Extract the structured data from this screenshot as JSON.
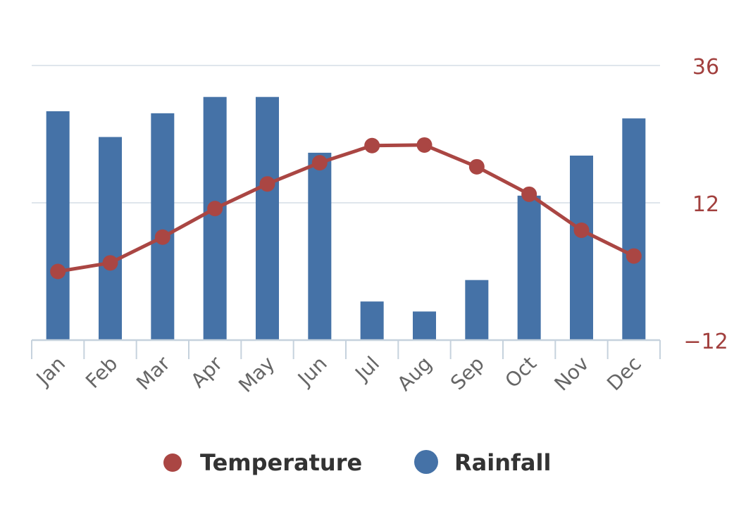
{
  "chart_data": {
    "type": "bar+line",
    "title": "",
    "categories": [
      "Jan",
      "Feb",
      "Mar",
      "Apr",
      "May",
      "Jun",
      "Jul",
      "Aug",
      "Sep",
      "Oct",
      "Nov",
      "Dec"
    ],
    "series": [
      {
        "name": "Rainfall",
        "type": "bar",
        "color": "#4572a7",
        "values": [
          80,
          71,
          79.3,
          85,
          85,
          65.5,
          13.5,
          10,
          21,
          50.5,
          64.5,
          77.5
        ],
        "ylim": [
          0,
          96
        ]
      },
      {
        "name": "Temperature",
        "type": "line",
        "color": "#aa4643",
        "values": [
          0,
          1.5,
          6,
          11,
          15.3,
          19,
          22,
          22.1,
          18.3,
          13.5,
          7.2,
          2.7
        ],
        "ylim": [
          -12,
          36
        ]
      }
    ],
    "right_axis": {
      "ticks": [
        -12,
        12,
        36
      ],
      "labels": [
        "−12",
        "12",
        "36"
      ],
      "color": "#aa4643"
    },
    "legend": {
      "position": "bottom-center",
      "items": [
        {
          "label": "Temperature",
          "color": "#aa4643"
        },
        {
          "label": "Rainfall",
          "color": "#4572a7"
        }
      ]
    },
    "grid": true
  }
}
